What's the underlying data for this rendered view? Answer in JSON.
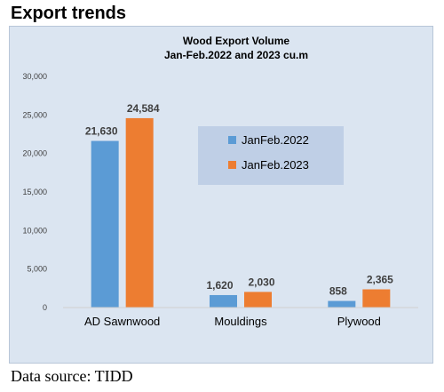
{
  "heading": "Export trends",
  "source": "Data source: TIDD",
  "colors": {
    "series_2022": "#5b9bd5",
    "series_2023": "#ed7d31",
    "background": "#dbe5f1",
    "legend_bg": "#bfcfe6"
  },
  "chart_data": {
    "type": "bar",
    "title": "Wood Export Volume",
    "subtitle": "Jan-Feb.2022 and 2023 cu.m",
    "xlabel": "",
    "ylabel": "",
    "categories": [
      "AD Sawnwood",
      "Mouldings",
      "Plywood"
    ],
    "series": [
      {
        "name": "JanFeb.2022",
        "values": [
          21630,
          1620,
          858
        ],
        "labels": [
          "21,630",
          "1,620",
          "858"
        ]
      },
      {
        "name": "JanFeb.2023",
        "values": [
          24584,
          2030,
          2365
        ],
        "labels": [
          "24,584",
          "2,030",
          "2,365"
        ]
      }
    ],
    "ylim": [
      0,
      30000
    ],
    "yticks": [
      0,
      5000,
      10000,
      15000,
      20000,
      25000,
      30000
    ],
    "ytick_labels": [
      "0",
      "5,000",
      "10,000",
      "15,000",
      "20,000",
      "25,000",
      "30,000"
    ],
    "grid": false,
    "legend_position": "center-right"
  }
}
